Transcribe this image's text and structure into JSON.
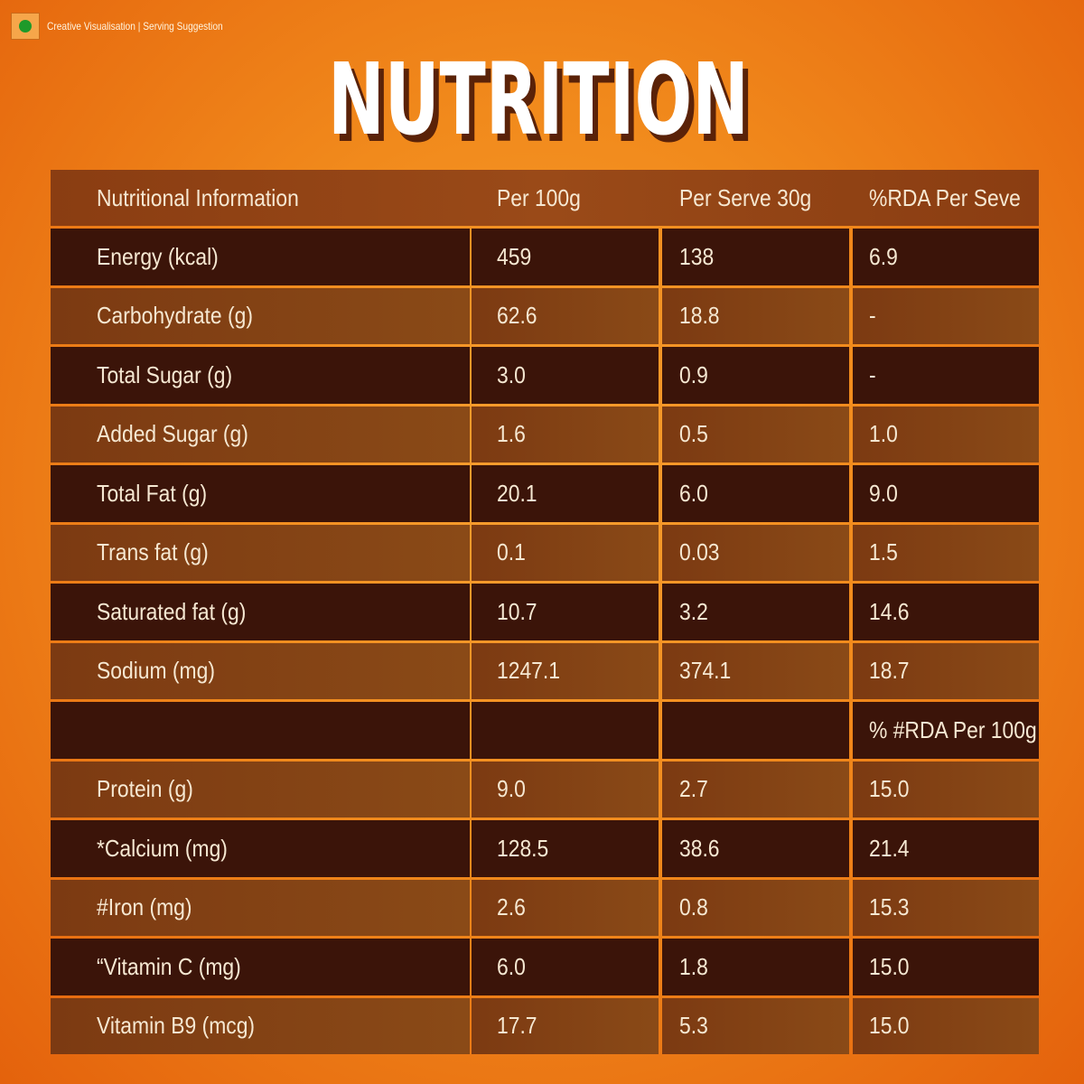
{
  "header": {
    "badge": "Creative Visualisation | Serving Suggestion",
    "title": "NUTRITION"
  },
  "table": {
    "columns": [
      "Nutritional Information",
      "Per 100g",
      "Per Serve 30g",
      "%RDA Per Seve"
    ],
    "sections": [
      {
        "rows": [
          [
            "Energy (kcal)",
            "459",
            "138",
            "6.9"
          ],
          [
            "Carbohydrate (g)",
            "62.6",
            "18.8",
            "-"
          ],
          [
            "Total Sugar (g)",
            "3.0",
            "0.9",
            "-"
          ],
          [
            "Added Sugar (g)",
            "1.6",
            "0.5",
            "1.0"
          ],
          [
            "Total Fat (g)",
            "20.1",
            "6.0",
            "9.0"
          ],
          [
            "Trans fat (g)",
            "0.1",
            "0.03",
            "1.5"
          ],
          [
            "Saturated fat (g)",
            "10.7",
            "3.2",
            "14.6"
          ],
          [
            "Sodium (mg)",
            "1247.1",
            "374.1",
            "18.7"
          ]
        ]
      },
      {
        "heading": "% #RDA Per 100g",
        "rows": [
          [
            "Protein (g)",
            "9.0",
            "2.7",
            "15.0"
          ],
          [
            "*Calcium (mg)",
            "128.5",
            "38.6",
            "21.4"
          ],
          [
            "#Iron (mg)",
            "2.6",
            "0.8",
            "15.3"
          ],
          [
            "“Vitamin C (mg)",
            "6.0",
            "1.8",
            "15.0"
          ],
          [
            "Vitamin B9 (mcg)",
            "17.7",
            "5.3",
            "15.0"
          ]
        ]
      }
    ]
  }
}
